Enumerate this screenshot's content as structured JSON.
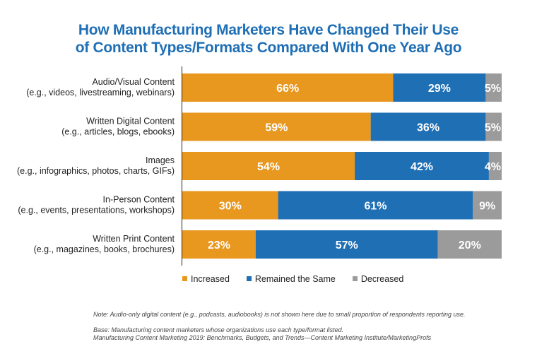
{
  "chart_data": {
    "type": "bar",
    "orientation": "horizontal",
    "stacked": true,
    "title_lines": [
      "How Manufacturing Marketers Have Changed Their Use",
      "of Content Types/Formats Compared With One Year Ago"
    ],
    "categories": [
      [
        "Audio/Visual Content",
        "(e.g., videos, livestreaming, webinars)"
      ],
      [
        "Written Digital Content",
        "(e.g., articles, blogs, ebooks)"
      ],
      [
        "Images",
        "(e.g., infographics, photos, charts, GIFs)"
      ],
      [
        "In-Person Content",
        "(e.g., events, presentations, workshops)"
      ],
      [
        "Written Print Content",
        "(e.g., magazines, books, brochures)"
      ]
    ],
    "series": [
      {
        "name": "Increased",
        "color": "#e8971f",
        "values": [
          66,
          59,
          54,
          30,
          23
        ]
      },
      {
        "name": "Remained the Same",
        "color": "#1f6fb5",
        "values": [
          29,
          36,
          42,
          61,
          57
        ]
      },
      {
        "name": "Decreased",
        "color": "#9b9b9b",
        "values": [
          5,
          5,
          4,
          9,
          20
        ]
      }
    ],
    "value_suffix": "%",
    "xlim": [
      0,
      100
    ],
    "legend_position": "bottom",
    "grid": false
  },
  "notes": {
    "note": "Note: Audio-only digital content (e.g., podcasts, audiobooks) is not shown here due to small proportion of respondents reporting use.",
    "base": "Base: Manufacturing content marketers whose organizations use each type/format listed.",
    "source": "Manufacturing Content Marketing 2019: Benchmarks, Budgets, and Trends—Content Marketing Institute/MarketingProfs"
  }
}
